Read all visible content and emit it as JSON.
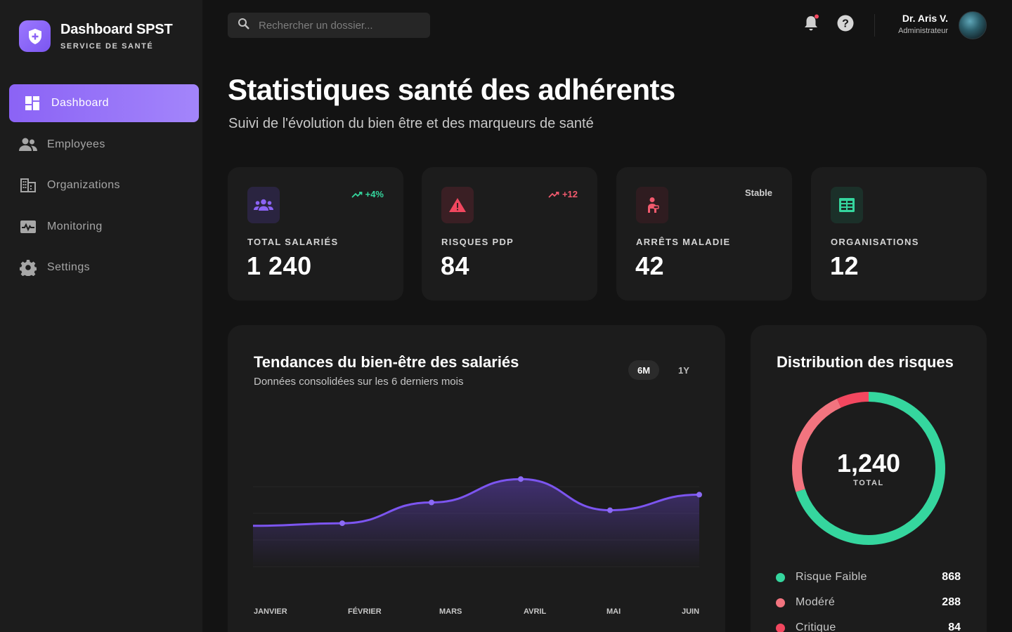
{
  "brand": {
    "title": "Dashboard SPST",
    "subtitle": "SERVICE DE SANTÉ"
  },
  "sidebar": {
    "items": [
      {
        "label": "Dashboard",
        "icon": "dashboard-icon"
      },
      {
        "label": "Employees",
        "icon": "people-icon"
      },
      {
        "label": "Organizations",
        "icon": "building-icon"
      },
      {
        "label": "Monitoring",
        "icon": "pulse-icon"
      },
      {
        "label": "Settings",
        "icon": "gear-icon"
      }
    ]
  },
  "search": {
    "placeholder": "Rechercher un dossier..."
  },
  "user": {
    "name": "Dr. Aris V.",
    "role": "Administrateur"
  },
  "page": {
    "title": "Statistiques santé des adhérents",
    "subtitle": "Suivi de l'évolution du bien être et des marqueurs de santé"
  },
  "kpis": [
    {
      "label": "TOTAL SALARIÉS",
      "value": "1 240",
      "trend": "+4%",
      "trend_color": "#35d69e",
      "icon": "group-icon",
      "icon_color": "#8b63f5",
      "icon_bg": "#2a2440"
    },
    {
      "label": "RISQUES PDP",
      "value": "84",
      "trend": "+12",
      "trend_color": "#f25a6e",
      "icon": "warning-icon",
      "icon_color": "#f2475f",
      "icon_bg": "#3a1f24"
    },
    {
      "label": "ARRÊTS MALADIE",
      "value": "42",
      "trend": "Stable",
      "trend_color": "#cfcfcf",
      "icon": "sick-person-icon",
      "icon_color": "#f25a6e",
      "icon_bg": "#2f1c20"
    },
    {
      "label": "ORGANISATIONS",
      "value": "12",
      "trend": "",
      "trend_color": "#cfcfcf",
      "icon": "spreadsheet-icon",
      "icon_color": "#35d69e",
      "icon_bg": "#1b3029"
    }
  ],
  "trend_chart": {
    "title": "Tendances du bien-être des salariés",
    "subtitle": "Données consolidées sur les 6 derniers mois",
    "ranges": [
      "6M",
      "1Y"
    ],
    "active_range": "6M"
  },
  "risk_chart": {
    "title": "Distribution des risques",
    "total": "1,240",
    "total_caption": "TOTAL"
  },
  "chart_data": [
    {
      "type": "line",
      "title": "Tendances du bien-être des salariés",
      "categories": [
        "JANVIER",
        "FÉVRIER",
        "MARS",
        "AVRIL",
        "MAI",
        "JUIN"
      ],
      "values": [
        76,
        77,
        85,
        94,
        82,
        88
      ],
      "ylim": [
        60,
        100
      ],
      "color": "#7c55f0",
      "grid": true
    },
    {
      "type": "pie",
      "title": "Distribution des risques",
      "categories": [
        "Risque Faible",
        "Modéré",
        "Critique"
      ],
      "values": [
        868,
        288,
        84
      ],
      "colors": [
        "#35d69e",
        "#f2747f",
        "#f2475f"
      ]
    }
  ]
}
